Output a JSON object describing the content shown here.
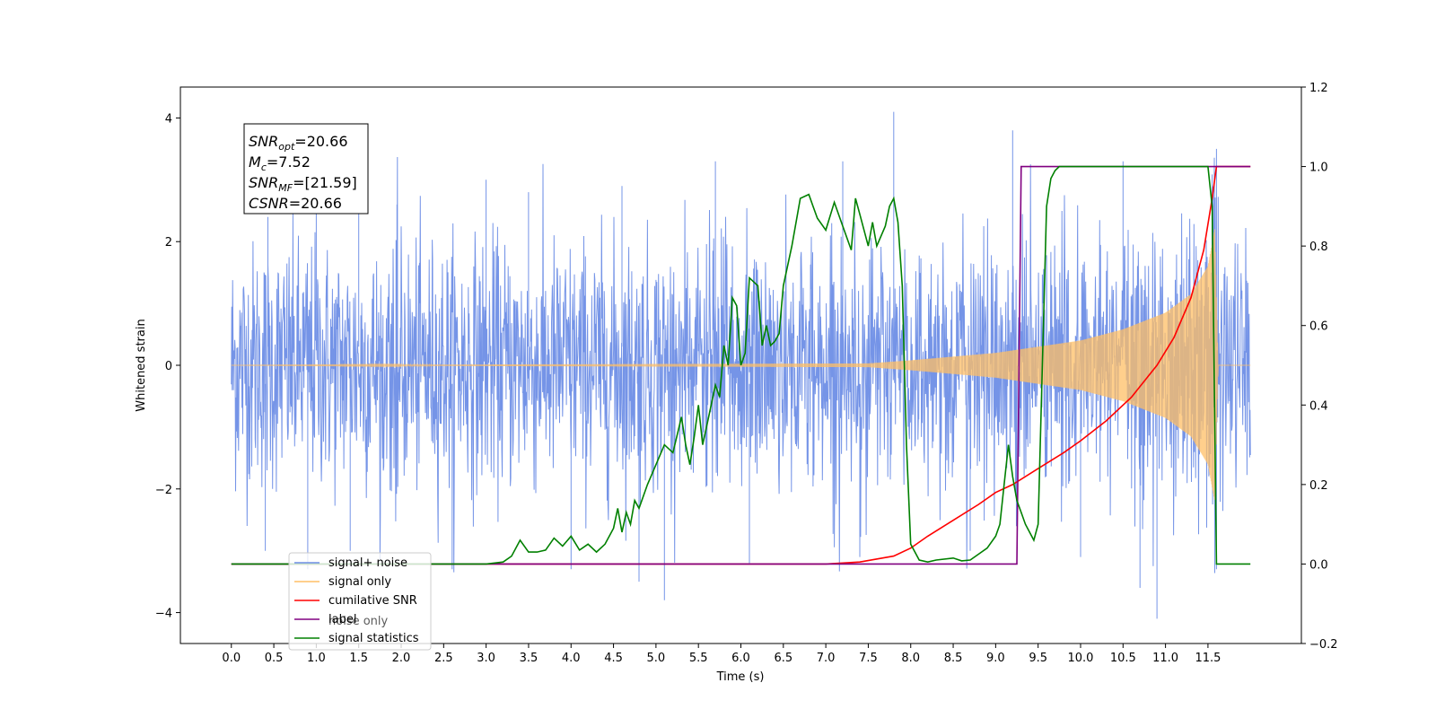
{
  "chart_data": {
    "type": "line",
    "title": "",
    "xlabel": "Time (s)",
    "ylabel": "Whitened strain",
    "ylabel_right": "",
    "xlim": [
      -0.6,
      12.6
    ],
    "ylim": [
      -4.5,
      4.5
    ],
    "ylim_right": [
      -0.2,
      1.2
    ],
    "x_ticks": [
      0.0,
      0.5,
      1.0,
      1.5,
      2.0,
      2.5,
      3.0,
      3.5,
      4.0,
      4.5,
      5.0,
      5.5,
      6.0,
      6.5,
      7.0,
      7.5,
      8.0,
      8.5,
      9.0,
      9.5,
      10.0,
      10.5,
      11.0,
      11.5
    ],
    "x_tick_labels": [
      "0.0",
      "0.5",
      "1.0",
      "1.5",
      "2.0",
      "2.5",
      "3.0",
      "3.5",
      "4.0",
      "4.5",
      "5.0",
      "5.5",
      "6.0",
      "6.5",
      "7.0",
      "7.5",
      "8.0",
      "8.5",
      "9.0",
      "9.5",
      "10.0",
      "10.5",
      "11.0",
      "11.5"
    ],
    "y_ticks": [
      -4,
      -2,
      0,
      2,
      4
    ],
    "y_tick_labels": [
      "−4",
      "−2",
      "0",
      "2",
      "4"
    ],
    "y_ticks_right": [
      -0.2,
      0.0,
      0.2,
      0.4,
      0.6,
      0.8,
      1.0,
      1.2
    ],
    "y_tick_labels_right": [
      "−0.2",
      "0.0",
      "0.2",
      "0.4",
      "0.6",
      "0.8",
      "1.0",
      "1.2"
    ],
    "grid": false,
    "legend_position": "lower-left",
    "annotation": {
      "lines": [
        {
          "main": "SNR",
          "sub": "opt",
          "rest": "=20.66"
        },
        {
          "main": "M",
          "sub": "c",
          "rest": "=7.52"
        },
        {
          "main": "SNR",
          "sub": "MF",
          "rest": "=[21.59]"
        },
        {
          "main": "CSNR",
          "sub": "",
          "rest": "=20.66"
        }
      ]
    },
    "series": [
      {
        "name": "signal+ noise",
        "color": "#6e8ee6",
        "axis": "left",
        "kind": "noise-band",
        "x_range": [
          0.0,
          12.0
        ],
        "typical_amplitude": 1.8,
        "peak_points": [
          [
            0.43,
            2.4
          ],
          [
            1.0,
            2.9
          ],
          [
            1.5,
            3.0
          ],
          [
            1.95,
            2.6
          ],
          [
            3.0,
            3.0
          ],
          [
            3.5,
            2.8
          ],
          [
            4.6,
            2.9
          ],
          [
            5.7,
            3.3
          ],
          [
            7.2,
            3.3
          ],
          [
            7.8,
            4.1
          ],
          [
            9.2,
            3.8
          ],
          [
            10.5,
            3.3
          ],
          [
            11.6,
            3.5
          ]
        ],
        "trough_points": [
          [
            0.4,
            -3.0
          ],
          [
            0.9,
            -3.3
          ],
          [
            1.4,
            -3.0
          ],
          [
            2.6,
            -3.3
          ],
          [
            4.0,
            -3.3
          ],
          [
            4.8,
            -3.5
          ],
          [
            5.1,
            -3.8
          ],
          [
            6.1,
            -3.2
          ],
          [
            7.4,
            -3.1
          ],
          [
            8.7,
            -3.0
          ],
          [
            10.0,
            -3.1
          ],
          [
            10.7,
            -3.6
          ],
          [
            10.9,
            -4.1
          ],
          [
            11.6,
            -3.3
          ]
        ]
      },
      {
        "name": "signal only",
        "color": "#ffbf66",
        "axis": "left",
        "kind": "chirp",
        "x_range": [
          0.0,
          12.0
        ],
        "envelope": [
          [
            0.0,
            0.0
          ],
          [
            7.5,
            0.03
          ],
          [
            8.0,
            0.08
          ],
          [
            9.0,
            0.2
          ],
          [
            10.0,
            0.4
          ],
          [
            10.5,
            0.58
          ],
          [
            11.0,
            0.85
          ],
          [
            11.3,
            1.15
          ],
          [
            11.5,
            1.6
          ],
          [
            11.58,
            2.2
          ],
          [
            11.62,
            0.0
          ],
          [
            12.0,
            0.0
          ]
        ]
      },
      {
        "name": "cumilative SNR",
        "color": "#ff0000",
        "axis": "right",
        "x": [
          0.0,
          7.0,
          7.4,
          7.8,
          8.0,
          8.2,
          8.5,
          8.8,
          9.0,
          9.2,
          9.5,
          9.8,
          10.0,
          10.3,
          10.6,
          10.9,
          11.1,
          11.3,
          11.45,
          11.55,
          11.6,
          11.62,
          12.0
        ],
        "y": [
          0.0,
          0.0,
          0.005,
          0.02,
          0.04,
          0.07,
          0.11,
          0.15,
          0.18,
          0.2,
          0.24,
          0.28,
          0.31,
          0.36,
          0.42,
          0.5,
          0.57,
          0.67,
          0.79,
          0.92,
          1.0,
          1.0,
          1.0
        ]
      },
      {
        "name": "label",
        "color": "#800080",
        "axis": "right",
        "x": [
          0.0,
          9.25,
          9.3,
          11.6,
          11.62,
          12.0
        ],
        "y": [
          0.0,
          0.0,
          1.0,
          1.0,
          1.0,
          1.0
        ]
      },
      {
        "name": "noise only",
        "color": "#b0b0b0",
        "axis": "right",
        "x": [],
        "y": []
      },
      {
        "name": "signal statistics",
        "color": "#008000",
        "axis": "right",
        "x": [
          0.0,
          3.0,
          3.2,
          3.3,
          3.4,
          3.5,
          3.6,
          3.7,
          3.8,
          3.9,
          4.0,
          4.1,
          4.2,
          4.3,
          4.4,
          4.5,
          4.55,
          4.6,
          4.65,
          4.7,
          4.75,
          4.8,
          4.9,
          5.0,
          5.1,
          5.2,
          5.3,
          5.35,
          5.4,
          5.45,
          5.5,
          5.55,
          5.6,
          5.7,
          5.75,
          5.8,
          5.85,
          5.9,
          5.95,
          6.0,
          6.05,
          6.1,
          6.2,
          6.25,
          6.3,
          6.35,
          6.4,
          6.45,
          6.5,
          6.6,
          6.7,
          6.8,
          6.85,
          6.9,
          7.0,
          7.1,
          7.2,
          7.3,
          7.35,
          7.4,
          7.5,
          7.55,
          7.6,
          7.7,
          7.75,
          7.8,
          7.85,
          7.9,
          7.95,
          8.0,
          8.1,
          8.2,
          8.3,
          8.5,
          8.6,
          8.7,
          8.8,
          8.9,
          9.0,
          9.05,
          9.1,
          9.15,
          9.2,
          9.25,
          9.3,
          9.35,
          9.4,
          9.45,
          9.5,
          9.55,
          9.6,
          9.65,
          9.7,
          9.75,
          9.8,
          9.9,
          10.0,
          10.5,
          11.0,
          11.5,
          11.55,
          11.6,
          11.65,
          11.7,
          12.0
        ],
        "y": [
          0.0,
          0.0,
          0.005,
          0.02,
          0.06,
          0.03,
          0.03,
          0.035,
          0.065,
          0.045,
          0.07,
          0.035,
          0.05,
          0.03,
          0.05,
          0.09,
          0.14,
          0.08,
          0.13,
          0.1,
          0.16,
          0.14,
          0.2,
          0.25,
          0.3,
          0.28,
          0.37,
          0.3,
          0.25,
          0.32,
          0.4,
          0.3,
          0.35,
          0.45,
          0.42,
          0.55,
          0.5,
          0.67,
          0.65,
          0.5,
          0.53,
          0.72,
          0.7,
          0.55,
          0.6,
          0.55,
          0.56,
          0.58,
          0.7,
          0.8,
          0.92,
          0.93,
          0.9,
          0.87,
          0.84,
          0.91,
          0.85,
          0.79,
          0.92,
          0.88,
          0.8,
          0.86,
          0.8,
          0.85,
          0.9,
          0.92,
          0.86,
          0.7,
          0.3,
          0.05,
          0.01,
          0.005,
          0.01,
          0.015,
          0.008,
          0.01,
          0.025,
          0.04,
          0.07,
          0.1,
          0.2,
          0.3,
          0.22,
          0.16,
          0.13,
          0.1,
          0.08,
          0.06,
          0.1,
          0.5,
          0.9,
          0.97,
          0.99,
          1.0,
          1.0,
          1.0,
          1.0,
          1.0,
          1.0,
          1.0,
          0.9,
          0.0,
          0.0,
          0.0,
          0.0
        ]
      }
    ]
  }
}
